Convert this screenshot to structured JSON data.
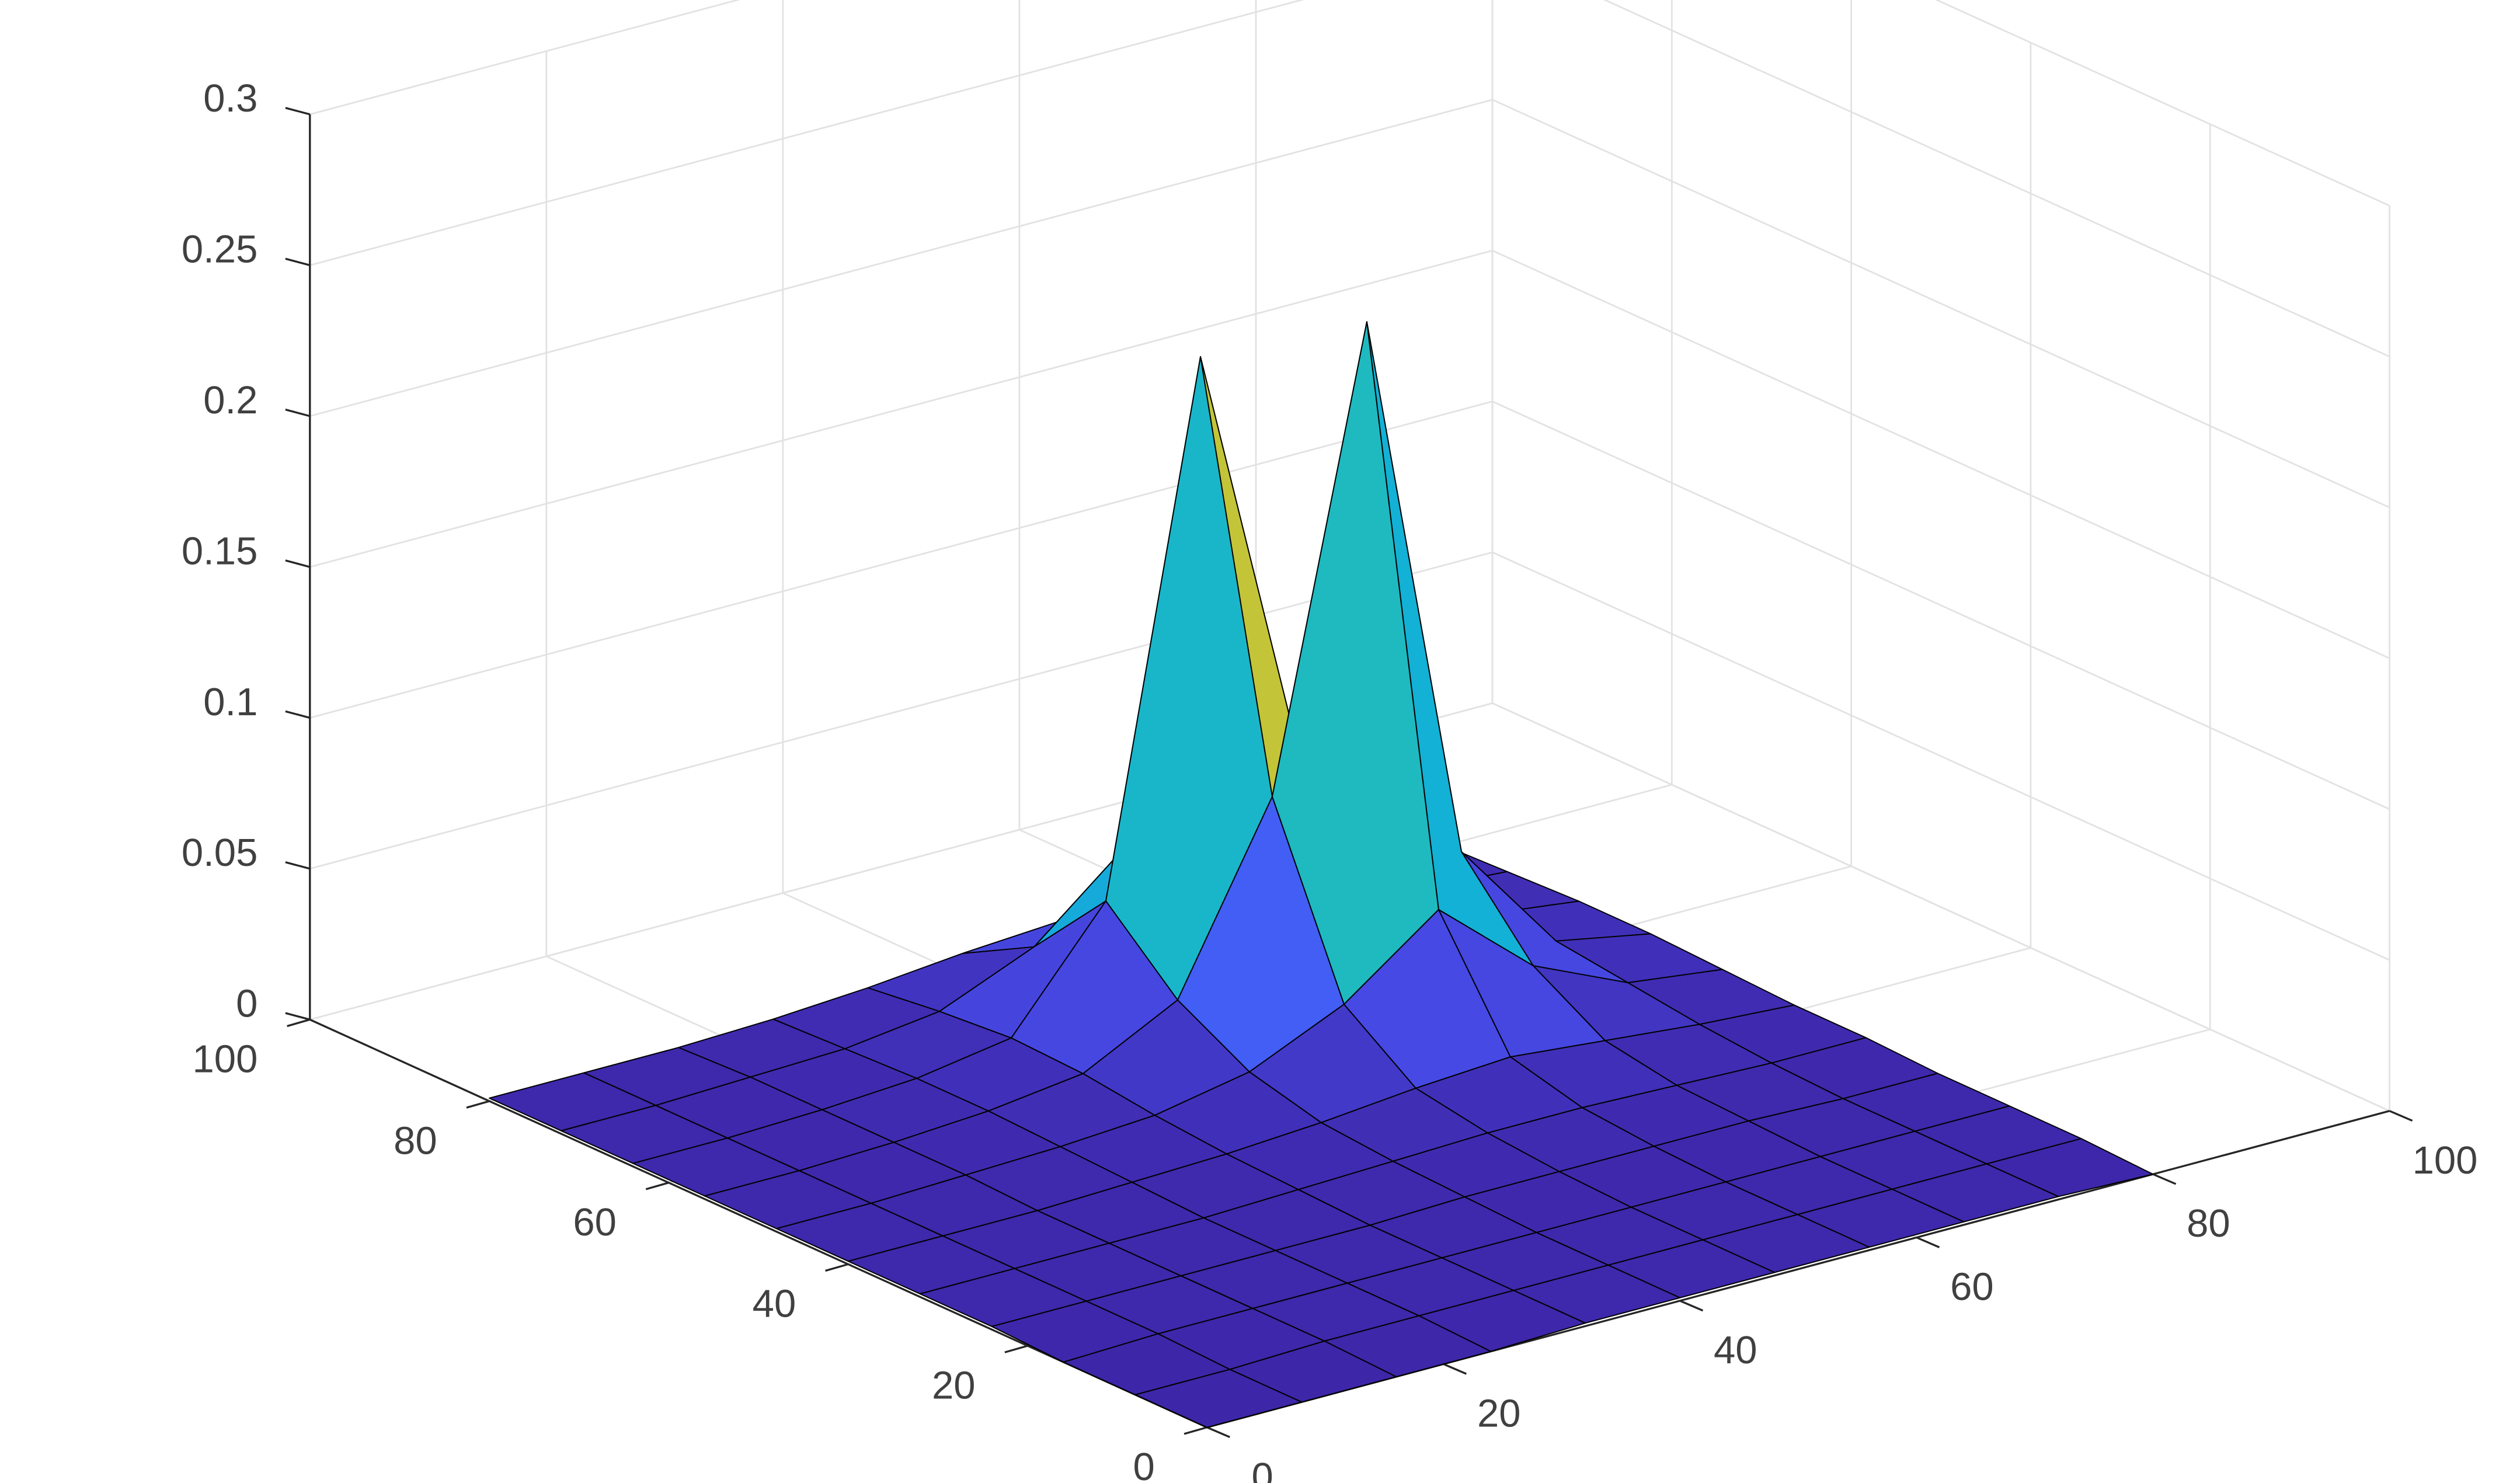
{
  "chart_data": {
    "type": "surface",
    "x": [
      0,
      8,
      16,
      24,
      32,
      40,
      48,
      56,
      64,
      72,
      80
    ],
    "y": [
      0,
      8,
      16,
      24,
      32,
      40,
      48,
      56,
      64,
      72,
      80
    ],
    "z": [
      [
        0,
        0,
        0,
        0,
        0.001,
        0.001,
        0.001,
        0.001,
        0.001,
        0.001,
        0
      ],
      [
        0,
        0,
        0.001,
        0.001,
        0.001,
        0.001,
        0.001,
        0.001,
        0.001,
        0.001,
        0.001
      ],
      [
        0,
        0.001,
        0.001,
        0.001,
        0.001,
        0.001,
        0.001,
        0.001,
        0.001,
        0.001,
        0.001
      ],
      [
        0.001,
        0.001,
        0.001,
        0.001,
        0.001,
        0.002,
        0.002,
        0.002,
        0.002,
        0.001,
        0.001
      ],
      [
        0.001,
        0.001,
        0.001,
        0.001,
        0.002,
        0.003,
        0.004,
        0.004,
        0.003,
        0.002,
        0.002
      ],
      [
        0.001,
        0.001,
        0.001,
        0.002,
        0.003,
        0.005,
        0.008,
        0.01,
        0.007,
        0.004,
        0.002
      ],
      [
        0.001,
        0.001,
        0.002,
        0.003,
        0.005,
        0.011,
        0.025,
        0.048,
        0.021,
        0.007,
        0.003
      ],
      [
        0.001,
        0.001,
        0.002,
        0.004,
        0.008,
        0.024,
        0.083,
        0.232,
        0.048,
        0.01,
        0.004
      ],
      [
        0.001,
        0.001,
        0.002,
        0.004,
        0.009,
        0.046,
        0.218,
        0.083,
        0.025,
        0.008,
        0.004
      ],
      [
        0.001,
        0.001,
        0.002,
        0.003,
        0.007,
        0.02,
        0.046,
        0.024,
        0.011,
        0.005,
        0.003
      ],
      [
        0.001,
        0.001,
        0.001,
        0.002,
        0.004,
        0.007,
        0.009,
        0.008,
        0.005,
        0.003,
        0.002
      ]
    ],
    "xlim": [
      0,
      100
    ],
    "xticks": [
      0,
      20,
      40,
      60,
      80,
      100
    ],
    "ylim": [
      0,
      100
    ],
    "yticks": [
      0,
      20,
      40,
      60,
      80,
      100
    ],
    "zlim": [
      0,
      0.3
    ],
    "zticks": [
      0,
      0.05,
      0.1,
      0.15,
      0.2,
      0.25,
      0.3
    ],
    "grid": true,
    "edge_color": "#000000",
    "colormap": [
      "#3e26a8",
      "#4852f4",
      "#2e87f7",
      "#12b1d6",
      "#37c897",
      "#abc739",
      "#fbbe37",
      "#f5e423",
      "#f9fb15"
    ]
  }
}
